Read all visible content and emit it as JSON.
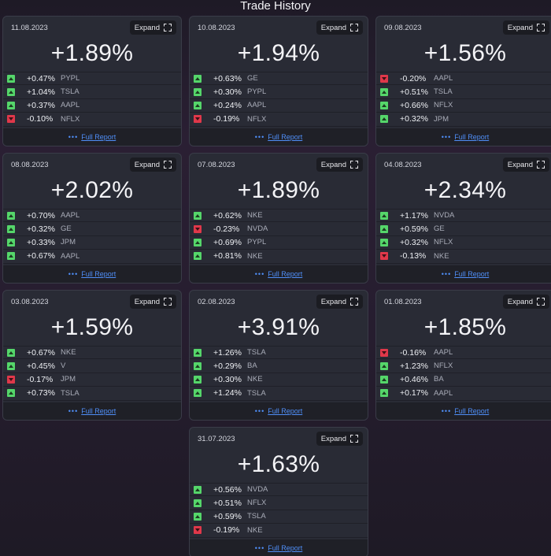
{
  "page": {
    "title": "Trade History"
  },
  "labels": {
    "expand": "Expand",
    "full_report": "Full Report"
  },
  "colors": {
    "up": "#55d66a",
    "down": "#e0384a",
    "link": "#4f8ef7"
  },
  "cards": [
    {
      "date": "11.08.2023",
      "total": "+1.89%",
      "rows": [
        {
          "dir": "up",
          "pct": "+0.47%",
          "sym": "PYPL"
        },
        {
          "dir": "up",
          "pct": "+1.04%",
          "sym": "TSLA"
        },
        {
          "dir": "up",
          "pct": "+0.37%",
          "sym": "AAPL"
        },
        {
          "dir": "down",
          "pct": "-0.10%",
          "sym": "NFLX"
        }
      ]
    },
    {
      "date": "10.08.2023",
      "total": "+1.94%",
      "rows": [
        {
          "dir": "up",
          "pct": "+0.63%",
          "sym": "GE"
        },
        {
          "dir": "up",
          "pct": "+0.30%",
          "sym": "PYPL"
        },
        {
          "dir": "up",
          "pct": "+0.24%",
          "sym": "AAPL"
        },
        {
          "dir": "down",
          "pct": "-0.19%",
          "sym": "NFLX"
        }
      ]
    },
    {
      "date": "09.08.2023",
      "total": "+1.56%",
      "rows": [
        {
          "dir": "down",
          "pct": "-0.20%",
          "sym": "AAPL"
        },
        {
          "dir": "up",
          "pct": "+0.51%",
          "sym": "TSLA"
        },
        {
          "dir": "up",
          "pct": "+0.66%",
          "sym": "NFLX"
        },
        {
          "dir": "up",
          "pct": "+0.32%",
          "sym": "JPM"
        }
      ]
    },
    {
      "date": "08.08.2023",
      "total": "+2.02%",
      "rows": [
        {
          "dir": "up",
          "pct": "+0.70%",
          "sym": "AAPL"
        },
        {
          "dir": "up",
          "pct": "+0.32%",
          "sym": "GE"
        },
        {
          "dir": "up",
          "pct": "+0.33%",
          "sym": "JPM"
        },
        {
          "dir": "up",
          "pct": "+0.67%",
          "sym": "AAPL"
        }
      ]
    },
    {
      "date": "07.08.2023",
      "total": "+1.89%",
      "rows": [
        {
          "dir": "up",
          "pct": "+0.62%",
          "sym": "NKE"
        },
        {
          "dir": "down",
          "pct": "-0.23%",
          "sym": "NVDA"
        },
        {
          "dir": "up",
          "pct": "+0.69%",
          "sym": "PYPL"
        },
        {
          "dir": "up",
          "pct": "+0.81%",
          "sym": "NKE"
        }
      ]
    },
    {
      "date": "04.08.2023",
      "total": "+2.34%",
      "rows": [
        {
          "dir": "up",
          "pct": "+1.17%",
          "sym": "NVDA"
        },
        {
          "dir": "up",
          "pct": "+0.59%",
          "sym": "GE"
        },
        {
          "dir": "up",
          "pct": "+0.32%",
          "sym": "NFLX"
        },
        {
          "dir": "down",
          "pct": "-0.13%",
          "sym": "NKE"
        }
      ]
    },
    {
      "date": "03.08.2023",
      "total": "+1.59%",
      "rows": [
        {
          "dir": "up",
          "pct": "+0.67%",
          "sym": "NKE"
        },
        {
          "dir": "up",
          "pct": "+0.45%",
          "sym": "V"
        },
        {
          "dir": "down",
          "pct": "-0.17%",
          "sym": "JPM"
        },
        {
          "dir": "up",
          "pct": "+0.73%",
          "sym": "TSLA"
        }
      ]
    },
    {
      "date": "02.08.2023",
      "total": "+3.91%",
      "rows": [
        {
          "dir": "up",
          "pct": "+1.26%",
          "sym": "TSLA"
        },
        {
          "dir": "up",
          "pct": "+0.29%",
          "sym": "BA"
        },
        {
          "dir": "up",
          "pct": "+0.30%",
          "sym": "NKE"
        },
        {
          "dir": "up",
          "pct": "+1.24%",
          "sym": "TSLA"
        }
      ]
    },
    {
      "date": "01.08.2023",
      "total": "+1.85%",
      "rows": [
        {
          "dir": "down",
          "pct": "-0.16%",
          "sym": "AAPL"
        },
        {
          "dir": "up",
          "pct": "+1.23%",
          "sym": "NFLX"
        },
        {
          "dir": "up",
          "pct": "+0.46%",
          "sym": "BA"
        },
        {
          "dir": "up",
          "pct": "+0.17%",
          "sym": "AAPL"
        }
      ]
    },
    {
      "date": "31.07.2023",
      "total": "+1.63%",
      "rows": [
        {
          "dir": "up",
          "pct": "+0.56%",
          "sym": "NVDA"
        },
        {
          "dir": "up",
          "pct": "+0.51%",
          "sym": "NFLX"
        },
        {
          "dir": "up",
          "pct": "+0.59%",
          "sym": "TSLA"
        },
        {
          "dir": "down",
          "pct": "-0.19%",
          "sym": "NKE"
        }
      ]
    }
  ]
}
